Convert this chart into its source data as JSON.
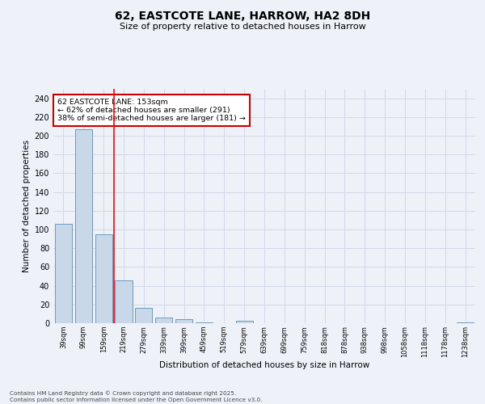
{
  "title": "62, EASTCOTE LANE, HARROW, HA2 8DH",
  "subtitle": "Size of property relative to detached houses in Harrow",
  "xlabel": "Distribution of detached houses by size in Harrow",
  "ylabel": "Number of detached properties",
  "categories": [
    "39sqm",
    "99sqm",
    "159sqm",
    "219sqm",
    "279sqm",
    "339sqm",
    "399sqm",
    "459sqm",
    "519sqm",
    "579sqm",
    "639sqm",
    "699sqm",
    "759sqm",
    "818sqm",
    "878sqm",
    "938sqm",
    "998sqm",
    "1058sqm",
    "1118sqm",
    "1178sqm",
    "1238sqm"
  ],
  "values": [
    106,
    207,
    95,
    46,
    16,
    6,
    4,
    1,
    0,
    3,
    0,
    0,
    0,
    0,
    0,
    0,
    0,
    0,
    0,
    0,
    1
  ],
  "bar_color": "#c8d8e8",
  "bar_edge_color": "#5b8db8",
  "grid_color": "#d0d8e8",
  "bg_color": "#eef2f8",
  "red_line_x": 2.5,
  "annotation_text": "62 EASTCOTE LANE: 153sqm\n← 62% of detached houses are smaller (291)\n38% of semi-detached houses are larger (181) →",
  "annotation_box_color": "#ffffff",
  "annotation_box_edge": "#cc0000",
  "ylim": [
    0,
    250
  ],
  "yticks": [
    0,
    20,
    40,
    60,
    80,
    100,
    120,
    140,
    160,
    180,
    200,
    220,
    240
  ],
  "footer_line1": "Contains HM Land Registry data © Crown copyright and database right 2025.",
  "footer_line2": "Contains public sector information licensed under the Open Government Licence v3.0."
}
